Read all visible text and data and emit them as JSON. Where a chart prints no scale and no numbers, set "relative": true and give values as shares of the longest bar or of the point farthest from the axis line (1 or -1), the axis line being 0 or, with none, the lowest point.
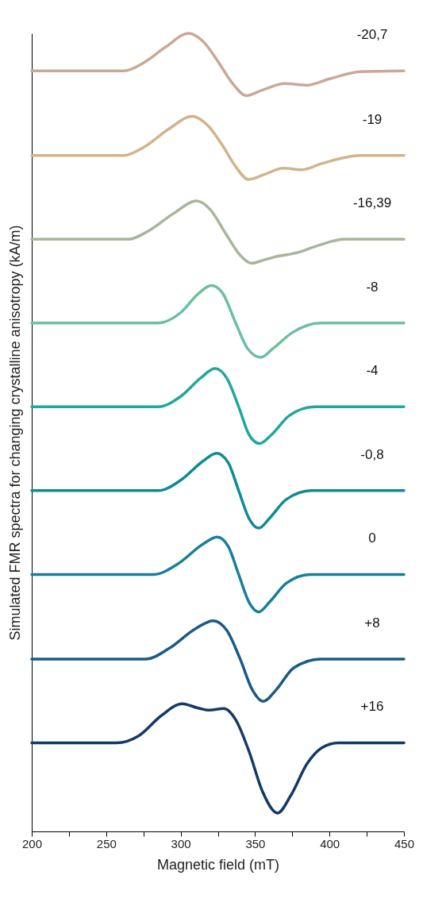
{
  "chart_data": {
    "type": "line",
    "relative": true,
    "xlabel": "Magnetic field (mT)",
    "ylabel": "Simulated FMR spectra for changing crystalline anisotropy (kA/m)",
    "xlim": [
      200,
      450
    ],
    "xticks": [
      200,
      {
        "value": 225,
        "label": null
      },
      250,
      {
        "value": 275,
        "label": null
      },
      300,
      {
        "value": 325,
        "label": null
      },
      350,
      {
        "value": 375,
        "label": null
      },
      400,
      {
        "value": 425,
        "label": null
      },
      450
    ],
    "tick_labels": "x",
    "grid": false,
    "legend": false,
    "series": [
      {
        "name": "-20,7",
        "color": "#c9a994",
        "x": [
          200,
          262,
          275,
          290,
          305.4,
          315,
          325,
          335,
          344,
          355,
          370,
          385,
          400,
          421,
          450
        ],
        "values": [
          0.953,
          0.953,
          0.963,
          0.983,
          1.0,
          0.99,
          0.965,
          0.937,
          0.922,
          0.929,
          0.937,
          0.935,
          0.943,
          0.952,
          0.953
        ]
      },
      {
        "name": "-19",
        "color": "#d0b48c",
        "x": [
          200,
          262,
          275,
          292,
          307.7,
          318,
          328,
          337,
          345.5,
          356,
          369,
          381,
          395,
          421,
          450
        ],
        "values": [
          0.847,
          0.847,
          0.857,
          0.88,
          0.896,
          0.885,
          0.86,
          0.833,
          0.817,
          0.823,
          0.831,
          0.829,
          0.837,
          0.847,
          0.847
        ]
      },
      {
        "name": "-16,39",
        "color": "#a8b59a",
        "x": [
          200,
          265,
          278,
          295,
          310.7,
          320,
          330,
          340,
          347.6,
          356,
          363.6,
          377.8,
          392,
          410,
          450
        ],
        "values": [
          0.742,
          0.742,
          0.752,
          0.774,
          0.79,
          0.779,
          0.75,
          0.722,
          0.712,
          0.716,
          0.72,
          0.725,
          0.734,
          0.742,
          0.742
        ]
      },
      {
        "name": "-8",
        "color": "#6cbf9f",
        "x": [
          200,
          285,
          300,
          312,
          320.6,
          328,
          337,
          345,
          353.9,
          362,
          375,
          394,
          450
        ],
        "values": [
          0.637,
          0.637,
          0.65,
          0.674,
          0.684,
          0.675,
          0.637,
          0.605,
          0.594,
          0.605,
          0.625,
          0.637,
          0.637
        ]
      },
      {
        "name": "-4",
        "color": "#1fa79e",
        "x": [
          200,
          285,
          300,
          314,
          323.1,
          331,
          339,
          346,
          353,
          361,
          373,
          390,
          450
        ],
        "values": [
          0.532,
          0.532,
          0.545,
          0.569,
          0.58,
          0.568,
          0.532,
          0.497,
          0.486,
          0.497,
          0.521,
          0.532,
          0.532
        ]
      },
      {
        "name": "-0,8",
        "color": "#0f8a96",
        "x": [
          200,
          285,
          300,
          315,
          324.2,
          332,
          339,
          346,
          352.5,
          360,
          371,
          388,
          450
        ],
        "values": [
          0.427,
          0.427,
          0.44,
          0.464,
          0.474,
          0.462,
          0.427,
          0.392,
          0.38,
          0.393,
          0.416,
          0.427,
          0.427
        ]
      },
      {
        "name": "0",
        "color": "#187e9a",
        "x": [
          200,
          282,
          298,
          315,
          324.6,
          332,
          339,
          346,
          352.5,
          360,
          371,
          387,
          450
        ],
        "values": [
          0.322,
          0.322,
          0.335,
          0.36,
          0.369,
          0.357,
          0.322,
          0.287,
          0.275,
          0.288,
          0.311,
          0.322,
          0.322
        ]
      },
      {
        "name": "+8",
        "color": "#1a5a85",
        "x": [
          200,
          277,
          292,
          310,
          321.9,
          331,
          340,
          348,
          355.6,
          364,
          376,
          394,
          450
        ],
        "values": [
          0.216,
          0.216,
          0.229,
          0.254,
          0.264,
          0.252,
          0.216,
          0.178,
          0.163,
          0.177,
          0.205,
          0.216,
          0.216
        ]
      },
      {
        "name": "+16",
        "color": "#133a66",
        "x": [
          200,
          257,
          272,
          287,
          301.1,
          311,
          319.2,
          329,
          337,
          346,
          355,
          365.1,
          374,
          385,
          395,
          406,
          450
        ],
        "values": [
          0.111,
          0.111,
          0.12,
          0.145,
          0.16,
          0.155,
          0.152,
          0.154,
          0.14,
          0.1,
          0.05,
          0.023,
          0.045,
          0.085,
          0.105,
          0.111,
          0.111
        ]
      }
    ]
  }
}
